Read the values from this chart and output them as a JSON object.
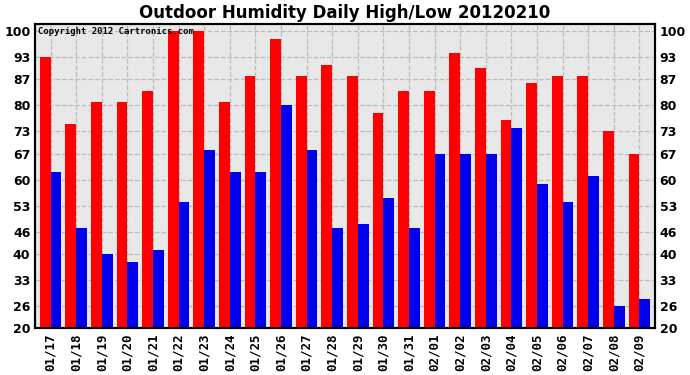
{
  "title": "Outdoor Humidity Daily High/Low 20120210",
  "copyright_text": "Copyright 2012 Cartronics.com",
  "dates": [
    "01/17",
    "01/18",
    "01/19",
    "01/20",
    "01/21",
    "01/22",
    "01/23",
    "01/24",
    "01/25",
    "01/26",
    "01/27",
    "01/28",
    "01/29",
    "01/30",
    "01/31",
    "02/01",
    "02/02",
    "02/03",
    "02/04",
    "02/05",
    "02/06",
    "02/07",
    "02/08",
    "02/09"
  ],
  "high_values": [
    93,
    75,
    81,
    81,
    84,
    100,
    100,
    81,
    88,
    98,
    88,
    91,
    88,
    78,
    84,
    84,
    94,
    90,
    76,
    86,
    88,
    88,
    73,
    67
  ],
  "low_values": [
    62,
    47,
    40,
    38,
    41,
    54,
    68,
    62,
    62,
    80,
    68,
    47,
    48,
    55,
    47,
    67,
    67,
    67,
    74,
    59,
    54,
    61,
    26,
    28
  ],
  "bar_color_high": "#ff0000",
  "bar_color_low": "#0000ee",
  "background_color": "#ffffff",
  "plot_bg_color": "#e8e8e8",
  "grid_color": "#bbbbbb",
  "yticks": [
    20,
    26,
    33,
    40,
    46,
    53,
    60,
    67,
    73,
    80,
    87,
    93,
    100
  ],
  "ylim": [
    20,
    102
  ],
  "bar_width": 0.42,
  "title_fontsize": 12,
  "tick_fontsize": 9
}
